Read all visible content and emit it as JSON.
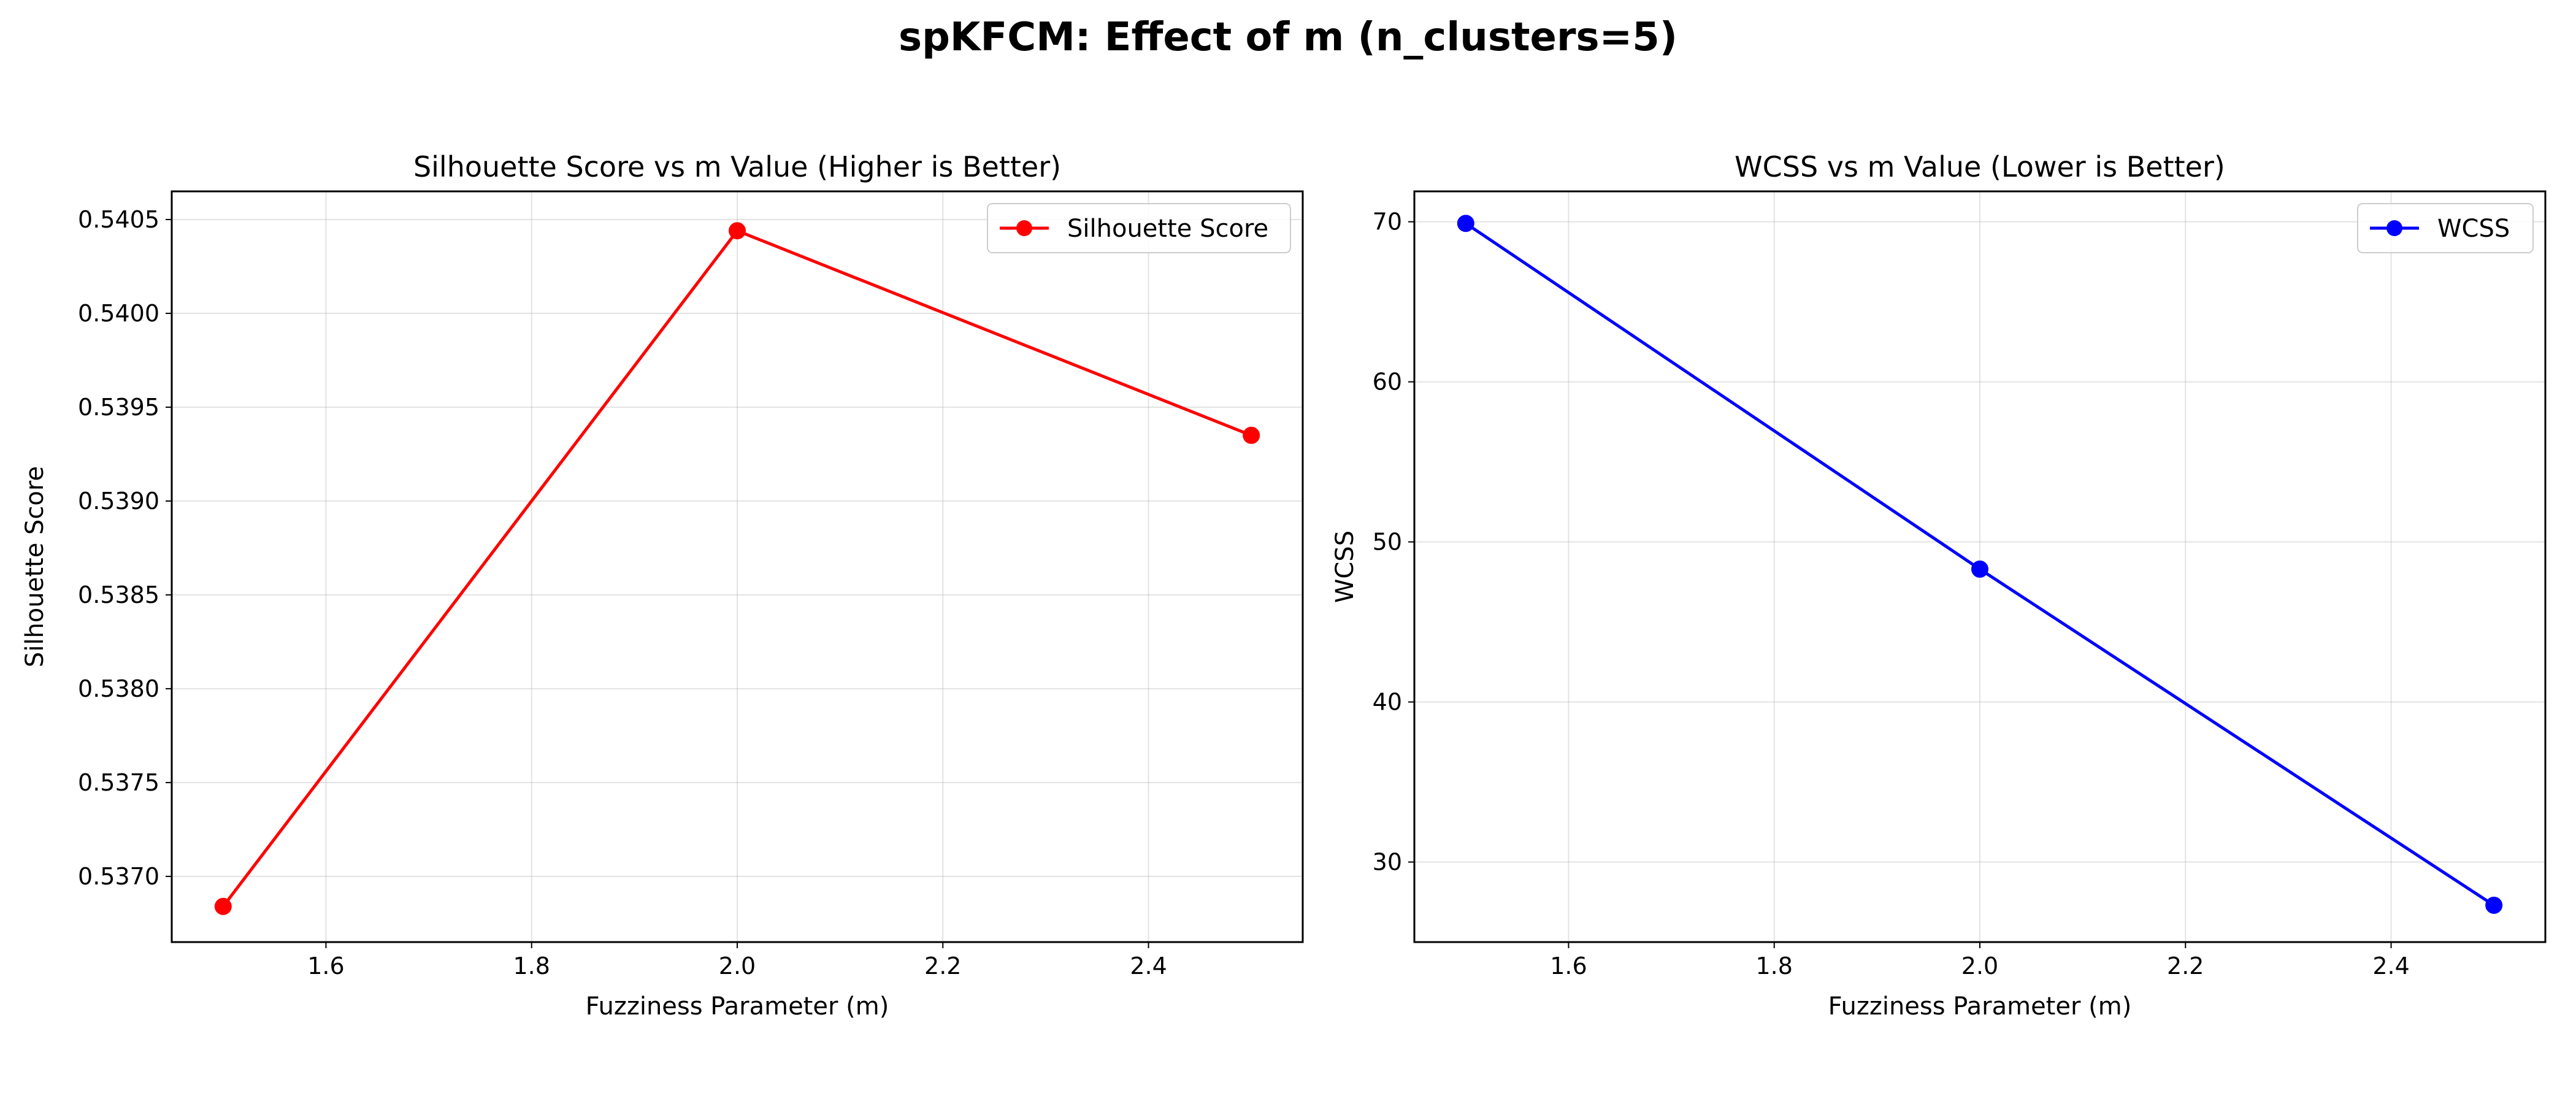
{
  "figure": {
    "suptitle": "spKFCM: Effect of m (n_clusters=5)"
  },
  "chart_data": [
    {
      "type": "line",
      "title": "Silhouette Score vs m Value (Higher is Better)",
      "xlabel": "Fuzziness Parameter (m)",
      "ylabel": "Silhouette Score",
      "x": [
        1.5,
        2.0,
        2.5
      ],
      "xlim": [
        1.45,
        2.55
      ],
      "ylim": [
        0.53665,
        0.54065
      ],
      "xticks": [
        1.6,
        1.8,
        2.0,
        2.2,
        2.4
      ],
      "xtick_labels": [
        "1.6",
        "1.8",
        "2.0",
        "2.2",
        "2.4"
      ],
      "yticks": [
        0.537,
        0.5375,
        0.538,
        0.5385,
        0.539,
        0.5395,
        0.54,
        0.5405
      ],
      "ytick_labels": [
        "0.5370",
        "0.5375",
        "0.5380",
        "0.5385",
        "0.5390",
        "0.5395",
        "0.5400",
        "0.5405"
      ],
      "grid": true,
      "legend_position": "top-right",
      "series": [
        {
          "name": "Silhouette Score",
          "values": [
            0.53684,
            0.54044,
            0.53935
          ],
          "color": "#ff0000",
          "marker": "circle"
        }
      ]
    },
    {
      "type": "line",
      "title": "WCSS vs m Value (Lower is Better)",
      "xlabel": "Fuzziness Parameter (m)",
      "ylabel": "WCSS",
      "x": [
        1.5,
        2.0,
        2.5
      ],
      "xlim": [
        1.45,
        2.55
      ],
      "ylim": [
        25.0,
        71.9
      ],
      "xticks": [
        1.6,
        1.8,
        2.0,
        2.2,
        2.4
      ],
      "xtick_labels": [
        "1.6",
        "1.8",
        "2.0",
        "2.2",
        "2.4"
      ],
      "yticks": [
        30,
        40,
        50,
        60,
        70
      ],
      "ytick_labels": [
        "30",
        "40",
        "50",
        "60",
        "70"
      ],
      "grid": true,
      "legend_position": "top-right",
      "series": [
        {
          "name": "WCSS",
          "values": [
            69.9,
            48.3,
            27.3
          ],
          "color": "#0000ff",
          "marker": "circle"
        }
      ]
    }
  ]
}
